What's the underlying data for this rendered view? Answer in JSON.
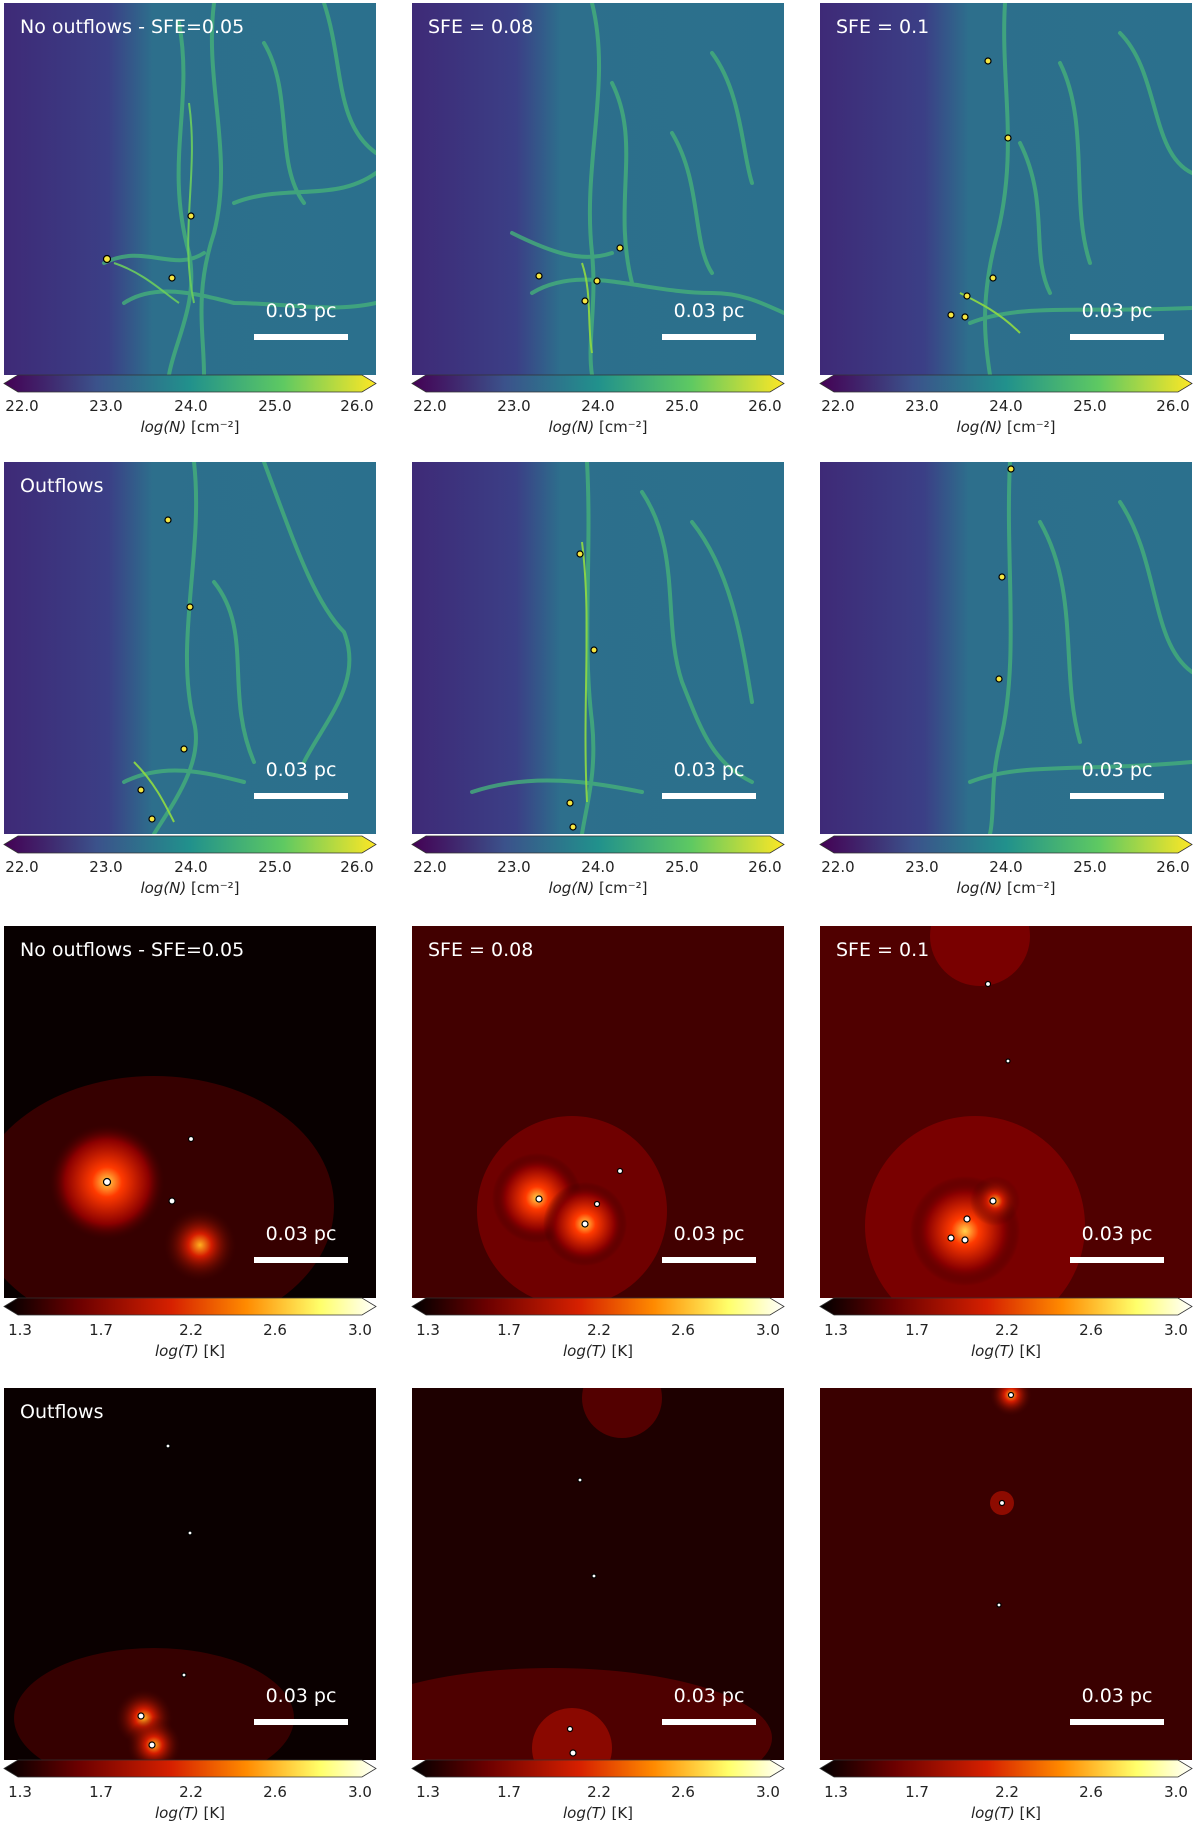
{
  "rows": [
    {
      "kind": "density",
      "panels": [
        {
          "title": "No outflows - SFE=0.05",
          "scale_label": "0.03 pc"
        },
        {
          "title": "SFE = 0.08",
          "scale_label": "0.03 pc"
        },
        {
          "title": "SFE = 0.1",
          "scale_label": "0.03 pc"
        }
      ],
      "colorbar": {
        "colormap": "viridis",
        "ticks": [
          "22.0",
          "23.0",
          "24.0",
          "25.0",
          "26.0"
        ],
        "label_main": "log(N)",
        "label_unit": "[cm⁻²]"
      }
    },
    {
      "kind": "density",
      "panels": [
        {
          "title": "Outflows",
          "scale_label": "0.03 pc"
        },
        {
          "title": "",
          "scale_label": "0.03 pc"
        },
        {
          "title": "",
          "scale_label": "0.03 pc"
        }
      ],
      "colorbar": {
        "colormap": "viridis",
        "ticks": [
          "22.0",
          "23.0",
          "24.0",
          "25.0",
          "26.0"
        ],
        "label_main": "log(N)",
        "label_unit": "[cm⁻²]"
      }
    },
    {
      "kind": "temperature",
      "panels": [
        {
          "title": "No outflows - SFE=0.05",
          "scale_label": "0.03 pc"
        },
        {
          "title": "SFE = 0.08",
          "scale_label": "0.03 pc"
        },
        {
          "title": "SFE = 0.1",
          "scale_label": "0.03 pc"
        }
      ],
      "colorbar": {
        "colormap": "gist_heat",
        "ticks": [
          "1.3",
          "1.7",
          "2.2",
          "2.6",
          "3.0"
        ],
        "label_main": "log(T)",
        "label_unit": "[K]"
      }
    },
    {
      "kind": "temperature",
      "panels": [
        {
          "title": "Outflows",
          "scale_label": "0.03 pc"
        },
        {
          "title": "",
          "scale_label": "0.03 pc"
        },
        {
          "title": "",
          "scale_label": "0.03 pc"
        }
      ],
      "colorbar": {
        "colormap": "gist_heat",
        "ticks": [
          "1.3",
          "1.7",
          "2.2",
          "2.6",
          "3.0"
        ],
        "label_main": "log(T)",
        "label_unit": "[K]"
      }
    }
  ],
  "colors": {
    "viridis": [
      "#440154",
      "#3b528b",
      "#21918c",
      "#5ec962",
      "#fde725"
    ],
    "gist_heat": [
      "#000000",
      "#6b0000",
      "#d62000",
      "#ff8a00",
      "#ffff6a",
      "#ffffff"
    ]
  }
}
